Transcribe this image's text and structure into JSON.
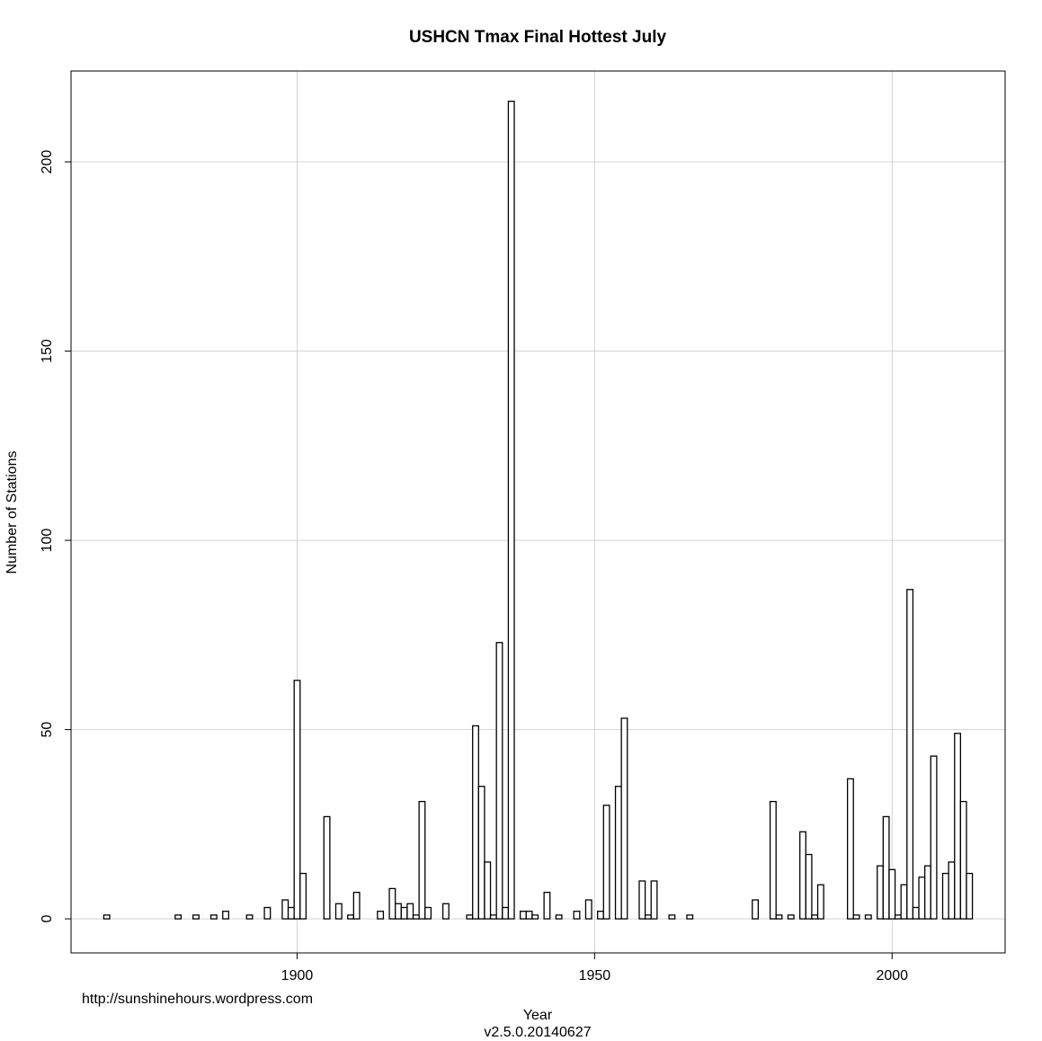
{
  "chart_data": {
    "type": "bar",
    "title": "USHCN Tmax Final Hottest July",
    "xlabel": "Year",
    "ylabel": "Number of Stations",
    "xlim": [
      1862,
      2019
    ],
    "ylim": [
      -9,
      224
    ],
    "xticks": [
      "1900",
      "1950",
      "2000"
    ],
    "yticks": [
      "0",
      "50",
      "100",
      "150",
      "200"
    ],
    "grid": true,
    "legend": "none",
    "bar_fill": "#ffffff",
    "bar_stroke": "#000000",
    "grid_color": "#d3d3d3",
    "x": [
      1868,
      1880,
      1883,
      1886,
      1888,
      1892,
      1895,
      1898,
      1899,
      1900,
      1901,
      1905,
      1907,
      1909,
      1910,
      1914,
      1916,
      1917,
      1918,
      1919,
      1920,
      1921,
      1922,
      1925,
      1929,
      1930,
      1931,
      1932,
      1933,
      1934,
      1935,
      1936,
      1938,
      1939,
      1940,
      1942,
      1944,
      1947,
      1949,
      1951,
      1952,
      1954,
      1955,
      1958,
      1959,
      1960,
      1963,
      1966,
      1977,
      1980,
      1981,
      1983,
      1985,
      1986,
      1987,
      1988,
      1993,
      1994,
      1996,
      1998,
      1999,
      2000,
      2001,
      2002,
      2003,
      2004,
      2005,
      2006,
      2007,
      2009,
      2010,
      2011,
      2012,
      2013
    ],
    "values": [
      1,
      1,
      1,
      1,
      2,
      1,
      3,
      5,
      3,
      63,
      12,
      27,
      4,
      1,
      7,
      2,
      8,
      4,
      3,
      4,
      1,
      31,
      3,
      4,
      1,
      51,
      35,
      15,
      1,
      73,
      3,
      216,
      2,
      2,
      1,
      7,
      1,
      2,
      5,
      2,
      30,
      35,
      53,
      10,
      1,
      10,
      1,
      1,
      5,
      31,
      1,
      1,
      23,
      17,
      1,
      9,
      37,
      1,
      1,
      14,
      27,
      13,
      1,
      9,
      87,
      3,
      11,
      14,
      43,
      12,
      15,
      49,
      31,
      12
    ]
  },
  "footer": {
    "url": "http://sunshinehours.wordpress.com",
    "version": "v2.5.0.20140627"
  }
}
